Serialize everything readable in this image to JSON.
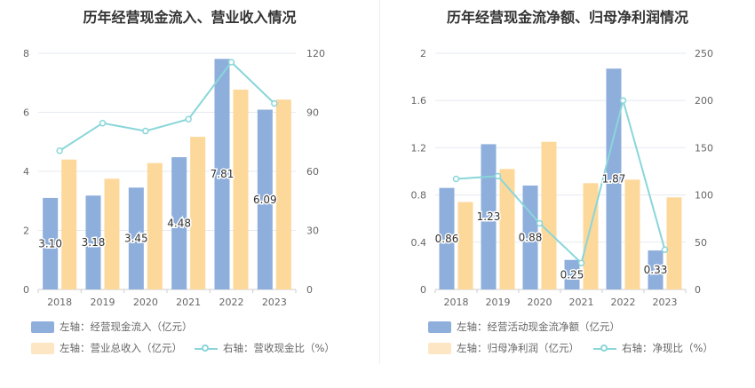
{
  "chart_data": [
    {
      "type": "bar",
      "title": "历年经营现金流入、营业收入情况",
      "categories": [
        "2018",
        "2019",
        "2020",
        "2021",
        "2022",
        "2023"
      ],
      "left_axis": {
        "ylim": [
          0,
          8
        ],
        "ticks": [
          "0",
          "2",
          "4",
          "6",
          "8"
        ]
      },
      "right_axis": {
        "ylim": [
          0,
          120
        ],
        "ticks": [
          "0",
          "30",
          "60",
          "90",
          "120"
        ]
      },
      "series": [
        {
          "name": "左轴：经营现金流入（亿元）",
          "axis": "left",
          "kind": "bar",
          "color": "#8eaedb",
          "values": [
            3.1,
            3.18,
            3.45,
            4.48,
            7.81,
            6.09
          ],
          "labels": [
            "3.10",
            "3.18",
            "3.45",
            "4.48",
            "7.81",
            "6.09"
          ]
        },
        {
          "name": "左轴：营业总收入（亿元）",
          "axis": "left",
          "kind": "bar",
          "color": "#fdd89b",
          "values": [
            4.4,
            3.75,
            4.28,
            5.17,
            6.77,
            6.43
          ]
        },
        {
          "name": "右轴：营收现金比（%）",
          "axis": "right",
          "kind": "line",
          "color": "#8ad6da",
          "values": [
            70.5,
            84.5,
            80.5,
            86.5,
            115.5,
            94.5
          ]
        }
      ]
    },
    {
      "type": "bar",
      "title": "历年经营现金流净额、归母净利润情况",
      "categories": [
        "2018",
        "2019",
        "2020",
        "2021",
        "2022",
        "2023"
      ],
      "left_axis": {
        "ylim": [
          0,
          2
        ],
        "ticks": [
          "0",
          "0.4",
          "0.8",
          "1.2",
          "1.6",
          "2"
        ]
      },
      "right_axis": {
        "ylim": [
          0,
          250
        ],
        "ticks": [
          "0",
          "50",
          "100",
          "150",
          "200",
          "250"
        ]
      },
      "series": [
        {
          "name": "左轴：经营活动现金流净额（亿元）",
          "axis": "left",
          "kind": "bar",
          "color": "#8eaedb",
          "values": [
            0.86,
            1.23,
            0.88,
            0.25,
            1.87,
            0.33
          ],
          "labels": [
            "0.86",
            "1.23",
            "0.88",
            "0.25",
            "1.87",
            "0.33"
          ]
        },
        {
          "name": "左轴：归母净利润（亿元）",
          "axis": "left",
          "kind": "bar",
          "color": "#fdd89b",
          "values": [
            0.74,
            1.02,
            1.25,
            0.9,
            0.93,
            0.78
          ]
        },
        {
          "name": "右轴：净现比（%）",
          "axis": "right",
          "kind": "line",
          "color": "#8ad6da",
          "values": [
            117,
            120,
            70,
            28,
            200,
            42
          ]
        }
      ]
    }
  ]
}
